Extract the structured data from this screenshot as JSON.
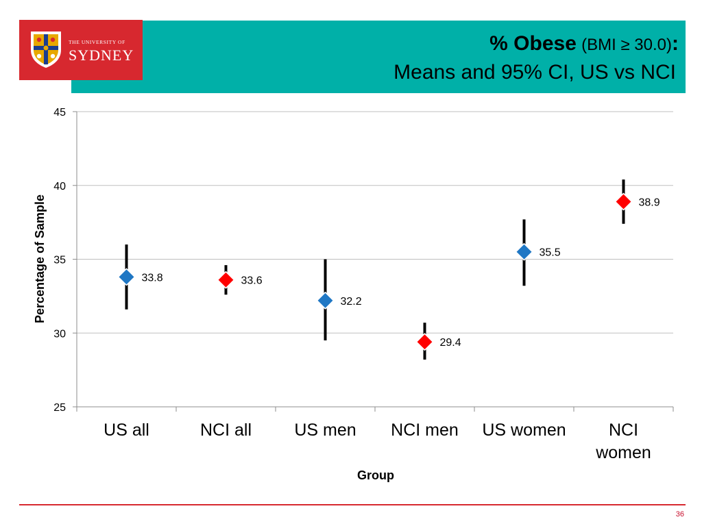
{
  "slide": {
    "title_bold": "% Obese",
    "title_normal": "(BMI ≥ 30.0)",
    "title_colon": ":",
    "subtitle": "Means and 95% CI,  US vs NCI",
    "page_number": "36"
  },
  "logo": {
    "top_text": "THE UNIVERSITY OF",
    "bottom_text": "SYDNEY",
    "icon": "university-crest-icon"
  },
  "colors": {
    "header_band": "#00b0a8",
    "logo_bg": "#d7282f",
    "us_marker": "#1f77c4",
    "nci_marker": "#ff0000",
    "error_bar": "#000000",
    "gridline": "#bfbfbf",
    "footer_line": "#d7282f"
  },
  "chart_data": {
    "type": "scatter",
    "title": "",
    "xlabel": "Group",
    "ylabel": "Percentage of Sample",
    "ylim": [
      25,
      45
    ],
    "yticks": [
      25,
      30,
      35,
      40,
      45
    ],
    "grid": true,
    "categories": [
      "US all",
      "NCI all",
      "US men",
      "NCI men",
      "US women",
      "NCI women"
    ],
    "category_lines": [
      [
        "US all"
      ],
      [
        "NCI all"
      ],
      [
        "US men"
      ],
      [
        "NCI men"
      ],
      [
        "US women"
      ],
      [
        "NCI",
        "women"
      ]
    ],
    "points": [
      {
        "category": "US all",
        "mean": 33.8,
        "ci_low": 31.6,
        "ci_high": 36.0,
        "label": "33.8",
        "group": "US"
      },
      {
        "category": "NCI all",
        "mean": 33.6,
        "ci_low": 32.6,
        "ci_high": 34.6,
        "label": "33.6",
        "group": "NCI"
      },
      {
        "category": "US men",
        "mean": 32.2,
        "ci_low": 29.5,
        "ci_high": 35.0,
        "label": "32.2",
        "group": "US"
      },
      {
        "category": "NCI men",
        "mean": 29.4,
        "ci_low": 28.2,
        "ci_high": 30.7,
        "label": "29.4",
        "group": "NCI"
      },
      {
        "category": "US women",
        "mean": 35.5,
        "ci_low": 33.2,
        "ci_high": 37.7,
        "label": "35.5",
        "group": "US"
      },
      {
        "category": "NCI women",
        "mean": 38.9,
        "ci_low": 37.4,
        "ci_high": 40.4,
        "label": "38.9",
        "group": "NCI"
      }
    ]
  }
}
